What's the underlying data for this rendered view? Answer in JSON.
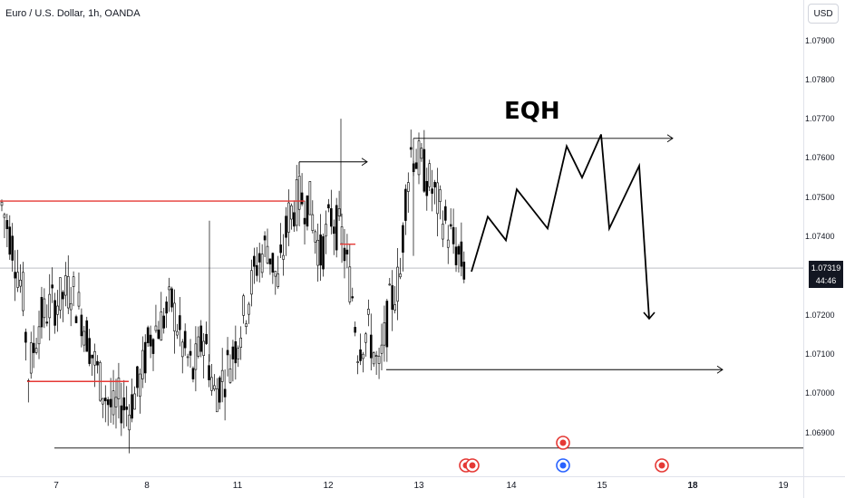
{
  "header": {
    "symbol_title": "Euro / U.S. Dollar, 1h, OANDA",
    "currency_button": "USD"
  },
  "price_axis": {
    "labels": [
      "1.07900",
      "1.07800",
      "1.07700",
      "1.07600",
      "1.07500",
      "1.07400",
      "1.07200",
      "1.07100",
      "1.07000",
      "1.06900"
    ]
  },
  "last_price": {
    "price": "1.07319",
    "countdown": "44:46"
  },
  "time_axis": {
    "labels": [
      {
        "text": "7",
        "bold": false
      },
      {
        "text": "8",
        "bold": false
      },
      {
        "text": "11",
        "bold": false
      },
      {
        "text": "12",
        "bold": false
      },
      {
        "text": "13",
        "bold": false
      },
      {
        "text": "14",
        "bold": false
      },
      {
        "text": "15",
        "bold": false
      },
      {
        "text": "18",
        "bold": true
      },
      {
        "text": "19",
        "bold": false
      }
    ]
  },
  "annotation": {
    "eqh_label": "EQH"
  },
  "colors": {
    "candle": "#000000",
    "level_line_red": "#e53935",
    "drawing": "#000000",
    "current_price_line": "#9598a1",
    "event_red": "#e53935",
    "event_blue": "#2962ff"
  },
  "chart_data": {
    "type": "candlestick",
    "instrument": "Euro / U.S. Dollar",
    "timeframe": "1h",
    "source": "OANDA",
    "ylim": [
      1.0683,
      1.0798
    ],
    "x_ticks": [
      "7",
      "8",
      "11",
      "12",
      "13",
      "14",
      "15",
      "18",
      "19"
    ],
    "y_ticks": [
      1.069,
      1.07,
      1.071,
      1.072,
      1.074,
      1.075,
      1.076,
      1.077,
      1.078,
      1.079
    ],
    "last_price": 1.07319,
    "red_levels": [
      {
        "price": 1.0749,
        "from_day": 7.0,
        "to_day": 11.7
      },
      {
        "price": 1.0703,
        "from_day": 7.0,
        "to_day": 7.8
      },
      {
        "price": 1.0738,
        "from_day": 12.1,
        "to_day": 12.3
      }
    ],
    "support_line": {
      "price": 1.0686
    },
    "eqh_line": {
      "price": 1.0765
    },
    "swing_high_arrow": {
      "price": 1.0759
    },
    "swing_low_arrow": {
      "price": 1.0706
    },
    "projection_path": [
      1.0731,
      1.0745,
      1.0739,
      1.0752,
      1.0742,
      1.0763,
      1.0755,
      1.0766,
      1.0742,
      1.0758,
      1.0719
    ],
    "candle_count": 180
  }
}
